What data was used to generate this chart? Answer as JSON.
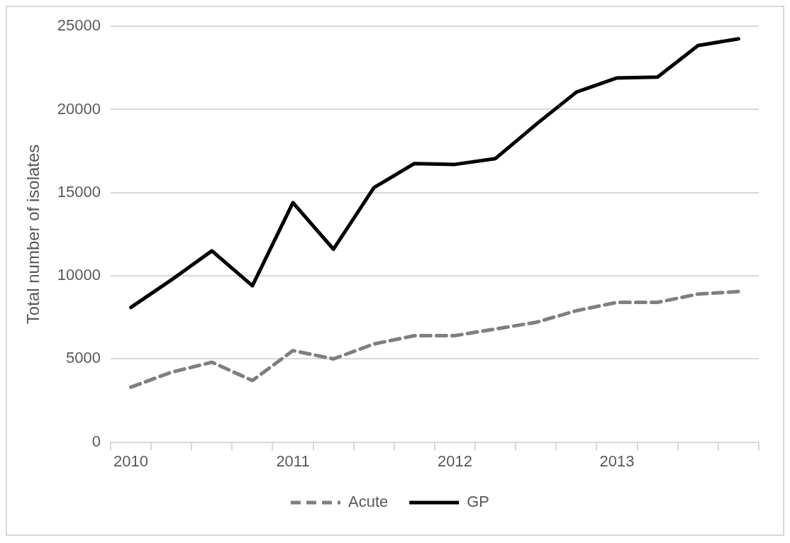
{
  "chart_data": {
    "type": "line",
    "ylabel": "Total number of isolates",
    "categories": [
      "2010",
      null,
      null,
      null,
      "2011",
      null,
      null,
      null,
      "2012",
      null,
      null,
      null,
      "2013",
      null,
      null,
      null
    ],
    "series": [
      {
        "name": "Acute",
        "color": "#7f7f7f",
        "line_style": "dashed",
        "values": [
          3300,
          4200,
          4800,
          3700,
          5500,
          5000,
          5900,
          6400,
          6400,
          6800,
          7200,
          7900,
          8400,
          8400,
          8900,
          9050
        ]
      },
      {
        "name": "GP",
        "color": "#000000",
        "line_style": "solid",
        "values": [
          8100,
          9750,
          11500,
          9400,
          14400,
          11600,
          15300,
          16750,
          16700,
          17050,
          19100,
          21050,
          21900,
          21950,
          23850,
          24250
        ]
      }
    ],
    "ylim": [
      0,
      25000
    ],
    "yticks": [
      0,
      5000,
      10000,
      15000,
      20000,
      25000
    ],
    "grid": "y",
    "legend": "bottom",
    "marker": "none"
  }
}
